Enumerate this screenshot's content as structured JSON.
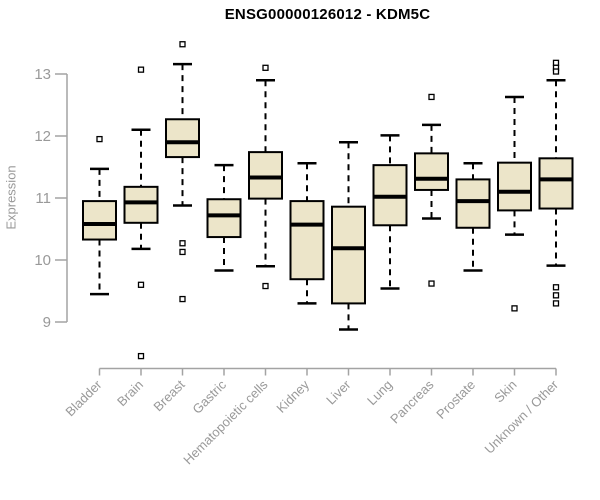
{
  "title": "ENSG00000126012 - KDM5C",
  "style": {
    "background": "#ffffff",
    "box_fill": "#ECE5C9",
    "box_stroke": "#000000",
    "median_color": "#000000",
    "outlier_stroke": "#000000",
    "outlier_fill": "#ffffff",
    "axis_color": "#a3a3a3",
    "tick_label_color": "#999999",
    "category_label_color": "#999999",
    "title_color": "#000000"
  },
  "chart_data": {
    "type": "boxplot",
    "title": "ENSG00000126012 - KDM5C",
    "xlabel": "",
    "ylabel": "Expression",
    "grid": false,
    "legend": "none",
    "ylim": [
      8.3,
      13.6
    ],
    "y_ticks": [
      9,
      10,
      11,
      12,
      13
    ],
    "categories": [
      "Bladder",
      "Brain",
      "Breast",
      "Gastric",
      "Hematopoietic cells",
      "Kidney",
      "Liver",
      "Lung",
      "Pancreas",
      "Prostate",
      "Skin",
      "Unknown / Other"
    ],
    "boxes": [
      {
        "category": "Bladder",
        "whisker_low": 9.45,
        "q1": 10.33,
        "median": 10.58,
        "q3": 10.95,
        "whisker_high": 11.47,
        "outliers": [
          11.95
        ]
      },
      {
        "category": "Brain",
        "whisker_low": 10.18,
        "q1": 10.6,
        "median": 10.93,
        "q3": 11.18,
        "whisker_high": 12.1,
        "outliers": [
          13.07,
          9.6,
          8.45
        ]
      },
      {
        "category": "Breast",
        "whisker_low": 10.88,
        "q1": 11.66,
        "median": 11.9,
        "q3": 12.27,
        "whisker_high": 13.16,
        "outliers": [
          13.48,
          10.27,
          10.13,
          9.37
        ]
      },
      {
        "category": "Gastric",
        "whisker_low": 9.83,
        "q1": 10.37,
        "median": 10.72,
        "q3": 10.98,
        "whisker_high": 11.53,
        "outliers": []
      },
      {
        "category": "Hematopoietic cells",
        "whisker_low": 9.9,
        "q1": 10.99,
        "median": 11.33,
        "q3": 11.74,
        "whisker_high": 12.9,
        "outliers": [
          13.1,
          9.58
        ]
      },
      {
        "category": "Kidney",
        "whisker_low": 9.3,
        "q1": 9.69,
        "median": 10.57,
        "q3": 10.95,
        "whisker_high": 11.56,
        "outliers": []
      },
      {
        "category": "Liver",
        "whisker_low": 8.88,
        "q1": 9.3,
        "median": 10.19,
        "q3": 10.86,
        "whisker_high": 11.9,
        "outliers": []
      },
      {
        "category": "Lung",
        "whisker_low": 9.54,
        "q1": 10.56,
        "median": 11.02,
        "q3": 11.53,
        "whisker_high": 12.01,
        "outliers": []
      },
      {
        "category": "Pancreas",
        "whisker_low": 10.67,
        "q1": 11.13,
        "median": 11.31,
        "q3": 11.72,
        "whisker_high": 12.18,
        "outliers": [
          12.63,
          9.62
        ]
      },
      {
        "category": "Prostate",
        "whisker_low": 9.83,
        "q1": 10.52,
        "median": 10.95,
        "q3": 11.3,
        "whisker_high": 11.56,
        "outliers": []
      },
      {
        "category": "Skin",
        "whisker_low": 10.41,
        "q1": 10.8,
        "median": 11.1,
        "q3": 11.57,
        "whisker_high": 12.63,
        "outliers": [
          9.22
        ]
      },
      {
        "category": "Unknown / Other",
        "whisker_low": 9.91,
        "q1": 10.83,
        "median": 11.3,
        "q3": 11.64,
        "whisker_high": 12.9,
        "outliers": [
          13.18,
          13.1,
          13.04,
          9.56,
          9.43,
          9.3
        ]
      }
    ]
  }
}
